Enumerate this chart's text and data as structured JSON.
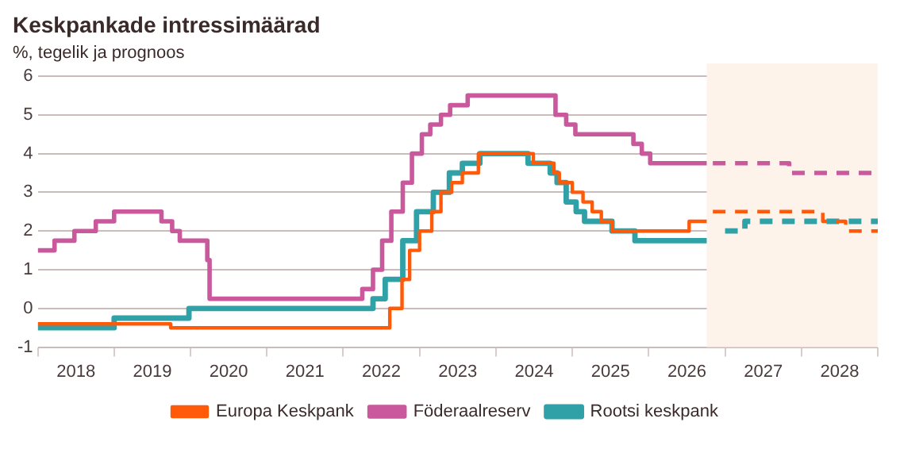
{
  "chart_data": {
    "type": "step",
    "title": "Keskpankade intressimäärad",
    "subtitle": "%, tegelik ja prognoos",
    "xlim": [
      2018,
      2029
    ],
    "xticks": [
      {
        "value": 2018,
        "label": null
      },
      {
        "value": 2018.5,
        "label": "2018"
      },
      {
        "value": 2019,
        "label": null
      },
      {
        "value": 2019.5,
        "label": "2019"
      },
      {
        "value": 2020,
        "label": null
      },
      {
        "value": 2020.5,
        "label": "2020"
      },
      {
        "value": 2021,
        "label": null
      },
      {
        "value": 2021.5,
        "label": "2021"
      },
      {
        "value": 2022,
        "label": null
      },
      {
        "value": 2022.5,
        "label": "2022"
      },
      {
        "value": 2023,
        "label": null
      },
      {
        "value": 2023.5,
        "label": "2023"
      },
      {
        "value": 2024,
        "label": null
      },
      {
        "value": 2024.5,
        "label": "2024"
      },
      {
        "value": 2025,
        "label": null
      },
      {
        "value": 2025.5,
        "label": "2025"
      },
      {
        "value": 2026,
        "label": null
      },
      {
        "value": 2026.5,
        "label": "2026"
      },
      {
        "value": 2027,
        "label": null
      },
      {
        "value": 2027.5,
        "label": "2027"
      },
      {
        "value": 2028,
        "label": null
      },
      {
        "value": 2028.5,
        "label": "2028"
      },
      {
        "value": 2029,
        "label": null
      }
    ],
    "ylim": [
      -1,
      6
    ],
    "yticks": [
      -1,
      0,
      1,
      2,
      3,
      4,
      5,
      6
    ],
    "grid": "y",
    "legend": "bottom",
    "bands": [
      {
        "axis": "x",
        "from": 2026.76,
        "to": 2029,
        "color": "#fdf3eb"
      }
    ],
    "series": [
      {
        "name": "Europa Keskpank",
        "color": "#ff5a0a",
        "line_style": "solid",
        "x": [
          2018,
          2019.74,
          2022.61,
          2022.77,
          2022.87,
          2023.0,
          2023.16,
          2023.28,
          2023.42,
          2023.56,
          2023.77,
          2024.49,
          2024.76,
          2024.83,
          2025.0,
          2025.14,
          2025.26,
          2025.38,
          2025.52,
          2026.53,
          2026.76
        ],
        "values": [
          -0.4,
          -0.5,
          0,
          0.75,
          1.5,
          2,
          2.5,
          3,
          3.25,
          3.5,
          4,
          3.75,
          3.5,
          3.25,
          3,
          2.75,
          2.5,
          2.25,
          2,
          2.25,
          2.25
        ]
      },
      {
        "name": "Föderaalreserv",
        "color": "#c9589c",
        "line_style": "solid",
        "x": [
          2018,
          2018.22,
          2018.48,
          2018.76,
          2019.0,
          2019.62,
          2019.76,
          2019.86,
          2020.22,
          2020.25,
          2022.25,
          2022.39,
          2022.51,
          2022.63,
          2022.78,
          2022.9,
          2023.03,
          2023.14,
          2023.28,
          2023.4,
          2023.63,
          2024.78,
          2024.92,
          2025.04,
          2025.8,
          2025.91,
          2026.02,
          2026.76
        ],
        "values": [
          1.5,
          1.75,
          2,
          2.25,
          2.5,
          2.25,
          2,
          1.75,
          1.25,
          0.25,
          0.5,
          1,
          1.75,
          2.5,
          3.25,
          4,
          4.5,
          4.75,
          5,
          5.25,
          5.5,
          5,
          4.75,
          4.5,
          4.25,
          4,
          3.75,
          3.75
        ]
      },
      {
        "name": "Rootsi keskpank",
        "color": "#31a1a8",
        "line_style": "solid",
        "x": [
          2018,
          2019.0,
          2019.98,
          2022.39,
          2022.55,
          2022.78,
          2022.96,
          2023.18,
          2023.39,
          2023.56,
          2023.79,
          2024.42,
          2024.71,
          2024.8,
          2024.92,
          2025.05,
          2025.16,
          2025.52,
          2025.82,
          2026.76
        ],
        "values": [
          -0.5,
          -0.25,
          0,
          0.25,
          0.75,
          1.75,
          2.5,
          3,
          3.5,
          3.75,
          4,
          3.75,
          3.5,
          3.25,
          2.75,
          2.5,
          2.25,
          2,
          1.75,
          1.75
        ]
      },
      {
        "color": "#ff5a0a",
        "line_style": "dashed",
        "x": [
          2026.84,
          2028.28,
          2028.58,
          2029
        ],
        "values": [
          2.5,
          2.25,
          2,
          2
        ]
      },
      {
        "color": "#c9589c",
        "line_style": "dashed",
        "x": [
          2026.84,
          2027.84,
          2029
        ],
        "values": [
          3.75,
          3.5,
          3.5
        ]
      },
      {
        "color": "#31a1a8",
        "line_style": "dashed",
        "x": [
          2027.0,
          2027.26,
          2029
        ],
        "values": [
          2,
          2.25,
          2.25
        ]
      }
    ]
  }
}
